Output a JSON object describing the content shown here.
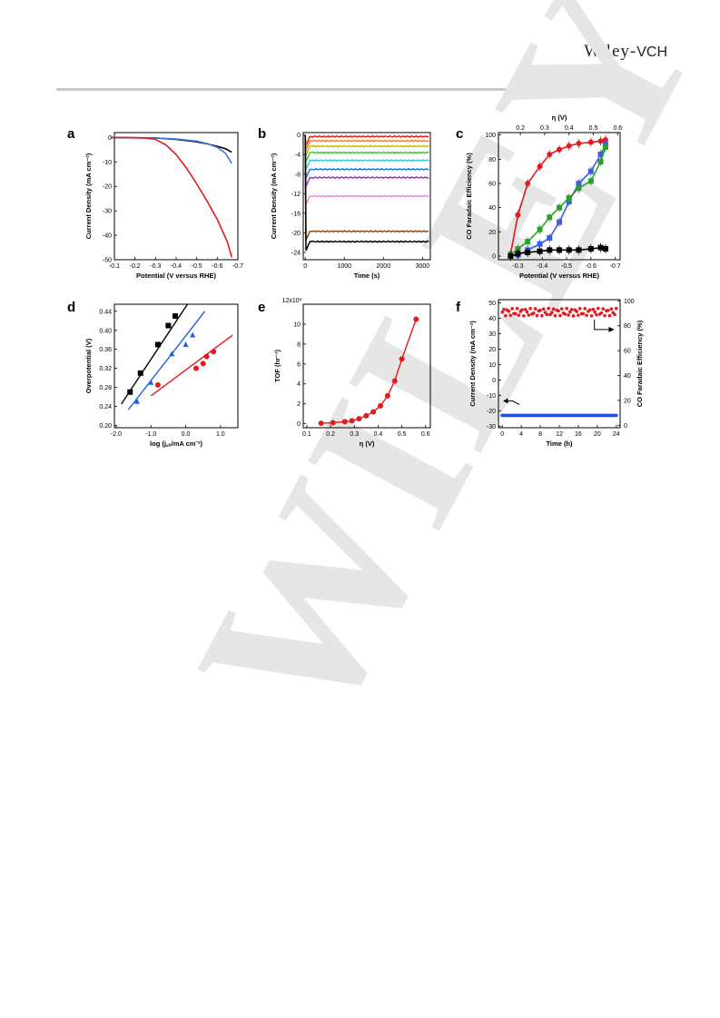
{
  "header": {
    "publisher_main": "Wiley",
    "publisher_sep": "-",
    "publisher_sub": "VCH"
  },
  "watermark": "WILEY",
  "panels": {
    "a": {
      "letter": "a"
    },
    "b": {
      "letter": "b"
    },
    "c": {
      "letter": "c"
    },
    "d": {
      "letter": "d"
    },
    "e": {
      "letter": "e"
    },
    "f": {
      "letter": "f"
    }
  },
  "chart_data": [
    {
      "panel": "a",
      "type": "line",
      "xlabel": "Potential (V versus RHE)",
      "ylabel": "Current Density (mA cm⁻²)",
      "xlim": [
        -0.1,
        -0.7
      ],
      "ylim": [
        -50,
        2
      ],
      "x_reversed": true,
      "xticks": [
        "-0.1",
        "-0.2",
        "-0.3",
        "-0.4",
        "-0.5",
        "-0.6",
        "-0.7"
      ],
      "yticks": [
        "0",
        "-10",
        "-20",
        "-30",
        "-40",
        "-50"
      ],
      "series": [
        {
          "color": "#000000",
          "x": [
            -0.08,
            -0.3,
            -0.4,
            -0.5,
            -0.55,
            -0.6,
            -0.64,
            -0.67
          ],
          "y": [
            0,
            -0.2,
            -0.8,
            -1.8,
            -2.6,
            -3.6,
            -4.6,
            -6
          ]
        },
        {
          "color": "#3b78e7",
          "x": [
            -0.08,
            -0.3,
            -0.4,
            -0.5,
            -0.55,
            -0.6,
            -0.64,
            -0.67
          ],
          "y": [
            0,
            -0.2,
            -0.6,
            -1.5,
            -2.5,
            -4,
            -6.5,
            -10.5
          ]
        },
        {
          "color": "#e41a1c",
          "x": [
            -0.08,
            -0.25,
            -0.3,
            -0.35,
            -0.4,
            -0.45,
            -0.5,
            -0.55,
            -0.6,
            -0.65,
            -0.67
          ],
          "y": [
            0,
            -0.2,
            -0.8,
            -3,
            -7,
            -12.5,
            -19,
            -26,
            -33.5,
            -43,
            -49
          ]
        }
      ]
    },
    {
      "panel": "b",
      "type": "line",
      "xlabel": "Time (s)",
      "ylabel": "Current Density (mA cm⁻²)",
      "xlim": [
        -50,
        3200
      ],
      "ylim": [
        -25.5,
        0.5
      ],
      "xticks": [
        "0",
        "1000",
        "2000",
        "3000"
      ],
      "yticks": [
        "0",
        "-4",
        "-8",
        "-12",
        "-16",
        "-20",
        "-24"
      ],
      "series": [
        {
          "color": "#e41a1c",
          "steady": -0.3
        },
        {
          "color": "#ff7f0e",
          "steady": -1.2
        },
        {
          "color": "#ccbb00",
          "steady": -2.3
        },
        {
          "color": "#33cc33",
          "steady": -3.6
        },
        {
          "color": "#33cccc",
          "steady": -5.2
        },
        {
          "color": "#1f77d4",
          "steady": -7
        },
        {
          "color": "#9933cc",
          "steady": -8.7
        },
        {
          "color": "#ee88dd",
          "steady": -12.5
        },
        {
          "color": "#8b4513",
          "steady": -19.7
        },
        {
          "color": "#000000",
          "steady": -21.8
        }
      ]
    },
    {
      "panel": "c",
      "type": "scatter",
      "xlabel": "Potential (V versus RHE)",
      "ylabel": "CO Faradaic Efficiency (%)",
      "top_xlabel": "η (V)",
      "xlim": [
        -0.22,
        -0.72
      ],
      "ylim": [
        -3,
        102
      ],
      "x_reversed": true,
      "xticks": [
        "-0.3",
        "-0.4",
        "-0.5",
        "-0.6",
        "-0.7"
      ],
      "top_xticks": [
        "0.2",
        "0.3",
        "0.4",
        "0.5",
        "0.6"
      ],
      "yticks": [
        "0",
        "20",
        "40",
        "60",
        "80",
        "100"
      ],
      "series": [
        {
          "color": "#e41a1c",
          "marker": "circle",
          "x": [
            -0.27,
            -0.3,
            -0.34,
            -0.39,
            -0.43,
            -0.47,
            -0.51,
            -0.55,
            -0.6,
            -0.64,
            -0.66
          ],
          "y": [
            2,
            34,
            60,
            74,
            84,
            88,
            91,
            93,
            94,
            95,
            96
          ]
        },
        {
          "color": "#3b5ee7",
          "marker": "square",
          "x": [
            -0.27,
            -0.3,
            -0.34,
            -0.39,
            -0.43,
            -0.47,
            -0.51,
            -0.55,
            -0.6,
            -0.64,
            -0.66
          ],
          "y": [
            0,
            1,
            5,
            10,
            15,
            28,
            45,
            60,
            70,
            84,
            92
          ]
        },
        {
          "color": "#2ca02c",
          "marker": "square",
          "x": [
            -0.27,
            -0.3,
            -0.34,
            -0.39,
            -0.43,
            -0.47,
            -0.51,
            -0.55,
            -0.6,
            -0.64,
            -0.66
          ],
          "y": [
            1,
            6,
            12,
            22,
            32,
            40,
            48,
            56,
            62,
            78,
            90
          ]
        },
        {
          "color": "#000000",
          "marker": "square",
          "x": [
            -0.27,
            -0.3,
            -0.34,
            -0.39,
            -0.43,
            -0.47,
            -0.51,
            -0.55,
            -0.6,
            -0.64,
            -0.66
          ],
          "y": [
            0,
            2,
            3,
            4,
            5,
            5,
            5,
            5,
            6,
            7,
            6
          ]
        }
      ]
    },
    {
      "panel": "d",
      "type": "scatter",
      "xlabel": "log (j꜀ₒ/mA cm⁻²)",
      "ylabel": "Overpotential (V)",
      "xlim": [
        -2.05,
        1.5
      ],
      "ylim": [
        0.195,
        0.455
      ],
      "xticks": [
        "-2.0",
        "-1.0",
        "0.0",
        "1.0"
      ],
      "yticks": [
        "0.20",
        "0.24",
        "0.28",
        "0.32",
        "0.36",
        "0.40",
        "0.44"
      ],
      "series": [
        {
          "color": "#000000",
          "marker": "square",
          "x": [
            -1.6,
            -1.3,
            -0.8,
            -0.5,
            -0.3
          ],
          "y": [
            0.27,
            0.31,
            0.37,
            0.41,
            0.43
          ],
          "fit": [
            [
              -1.85,
              0.245
            ],
            [
              0.05,
              0.455
            ]
          ]
        },
        {
          "color": "#1f5fe0",
          "marker": "triangle",
          "x": [
            -1.4,
            -1.0,
            -0.4,
            0.0,
            0.2
          ],
          "y": [
            0.25,
            0.29,
            0.35,
            0.37,
            0.39
          ],
          "fit": [
            [
              -1.65,
              0.233
            ],
            [
              0.55,
              0.44
            ]
          ]
        },
        {
          "color": "#e41a1c",
          "marker": "circle",
          "x": [
            -0.8,
            0.3,
            0.5,
            0.6,
            0.8
          ],
          "y": [
            0.285,
            0.32,
            0.33,
            0.345,
            0.355
          ],
          "fit": [
            [
              -1.0,
              0.262
            ],
            [
              1.35,
              0.39
            ]
          ]
        }
      ]
    },
    {
      "panel": "e",
      "type": "line",
      "xlabel": "η (V)",
      "ylabel": "TOF (hr⁻¹)",
      "y_multiplier": "12x10³",
      "xlim": [
        0.085,
        0.62
      ],
      "ylim": [
        -0.4,
        12
      ],
      "xticks": [
        "0.1",
        "0.2",
        "0.3",
        "0.4",
        "0.5",
        "0.6"
      ],
      "yticks": [
        "0",
        "2",
        "4",
        "6",
        "8",
        "10"
      ],
      "series": [
        {
          "color": "#e41a1c",
          "marker": "circle",
          "x": [
            0.16,
            0.21,
            0.26,
            0.29,
            0.32,
            0.35,
            0.38,
            0.41,
            0.44,
            0.47,
            0.5,
            0.56
          ],
          "y": [
            0.05,
            0.1,
            0.2,
            0.3,
            0.5,
            0.8,
            1.2,
            1.8,
            2.8,
            4.3,
            6.5,
            10.5
          ]
        }
      ]
    },
    {
      "panel": "f",
      "type": "scatter",
      "xlabel": "Time (h)",
      "ylabel": "Current Density (mA cm⁻²)",
      "ylabel_right": "CO Faradaic Efficiency (%)",
      "xlim": [
        -0.8,
        24.8
      ],
      "ylim": [
        -31,
        52
      ],
      "ylim_right": [
        -2,
        101
      ],
      "xticks": [
        "0",
        "4",
        "8",
        "12",
        "16",
        "20",
        "24"
      ],
      "yticks": [
        "50",
        "40",
        "30",
        "20",
        "10",
        "0",
        "-10",
        "-20",
        "-30"
      ],
      "yticks_right": [
        "100",
        "80",
        "60",
        "40",
        "20",
        "0"
      ],
      "series": [
        {
          "color": "#e41a1c",
          "axis": "right",
          "mean": 91,
          "spread": 3,
          "count": 70
        },
        {
          "color": "#1f4fe0",
          "axis": "left",
          "mean": -23,
          "count": 100
        }
      ]
    }
  ]
}
